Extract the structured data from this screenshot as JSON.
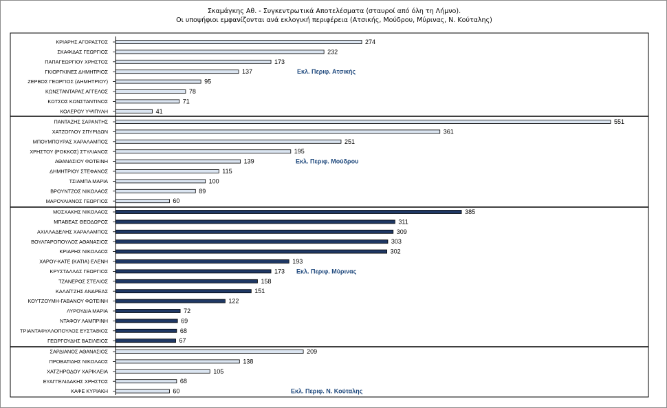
{
  "page": {
    "title": "Σκαμάγκης Αθ. - Συγκεντρωτικά Αποτελέσματα (σταυροί από όλη τη Λήμνο).",
    "subtitle": "Οι υποψήφιοι εμφανίζονται ανά εκλογική περιφέρεια (Ατσικής, Μούδρου, Μύρινας, Ν. Κούταλης)"
  },
  "chart_data": {
    "type": "bar",
    "orientation": "horizontal",
    "xlim": [
      0,
      560
    ],
    "grid": false,
    "legend": "none",
    "colors": {
      "light": "#dbe5f1",
      "dark": "#1f3864",
      "label_blue": "#1f497d"
    },
    "groups": [
      {
        "name": "Εκλ. Περιφ. Ατσικής",
        "style": "light",
        "categories": [
          "ΚΡΙΑΡΗΣ ΑΓΟΡΑΣΤΟΣ",
          "ΣΚΑΦΙΔΑΣ ΓΕΩΡΓΙΟΣ",
          "ΠΑΠΑΓΕΩΡΓΙΟΥ ΧΡΗΣΤΟΣ",
          "ΓΚΙΟΡΓΚΙΝΕΣ ΔΗΜΗΤΡΙΟΣ",
          "ΖΕΡΒΟΣ ΓΕΩΡΓΙΟΣ (ΔΗΜΗΤΡΙΟΥ)",
          "ΚΩΝΣΤΑΝΤΑΡΑΣ ΑΓΓΕΛΟΣ",
          "ΚΩΤΣΟΣ ΚΩΝΣΤΑΝΤΙΝΟΣ",
          "ΚΟΛΕΡΟΥ ΥΨΙΠΥΛΗ"
        ],
        "values": [
          274,
          232,
          173,
          137,
          95,
          78,
          71,
          41
        ]
      },
      {
        "name": "Εκλ. Περιφ.  Μούδρου",
        "style": "light",
        "categories": [
          "ΠΑΝΤΑΖΗΣ ΣΑΡΑΝΤΗΣ",
          "ΧΑΤΖΟΓΛΟΥ ΣΠΥΡΙΔΩΝ",
          "ΜΠΟΥΜΠΟΥΡΑΣ ΧΑΡΑΛΑΜΠΟΣ",
          "ΧΡΗΣΤΟΥ (ΡΟΚΚΟΣ) ΣΤΥΛΙΑΝΟΣ",
          "ΑΘΑΝΑΣΙΟΥ ΦΩΤΕΙΝΗ",
          "ΔΗΜΗΤΡΙΟΥ ΣΤΕΦΑΝΟΣ",
          "ΤΣΙΑΜΠΑ ΜΑΡΙΑ",
          "ΒΡΟΥΝΤΖΟΣ ΝΙΚΟΛΑΟΣ",
          "ΜΑΡΟΥΛΙΑΝΟΣ ΓΕΩΡΓΙΟΣ"
        ],
        "values": [
          551,
          361,
          251,
          195,
          139,
          115,
          100,
          89,
          60
        ]
      },
      {
        "name": "Εκλ. Περιφ. Μύρινας",
        "style": "dark",
        "categories": [
          "ΜΟΣΧΑΚΗΣ ΝΙΚΟΛΑΟΣ",
          "ΜΠΑΒΕΑΣ ΘΕΟΔΩΡΟΣ",
          "ΑΧΙΛΛΑΔΕΛΗΣ ΧΑΡΑΛΑΜΠΟΣ",
          "ΒΟΥΛΓΑΡΟΠΟΥΛΟΣ ΑΘΑΝΑΣΙΟΣ",
          "ΚΡΙΑΡΗΣ ΝΙΚΟΛΑΟΣ",
          "ΧΑΡΟΥ-ΚΑΤΕ (ΚΑΤΙΑ) ΕΛΕΝΗ",
          "ΚΡΥΣΤΑΛΛΑΣ ΓΕΩΡΓΙΟΣ",
          "ΤΖΑΝΕΡΟΣ ΣΤΕΛΙΟΣ",
          "ΚΑΛΑΪΤΖΗΣ ΑΝΔΡΕΑΣ",
          "ΚΟΥΤΖΟΥΜΗ-ΓΑΒΑΝΟΥ ΦΩΤΕΙΝΗ",
          "ΛΥΡΟΥΔΙΑ ΜΑΡΙΑ",
          "ΝΤΑΦΟΥ ΛΑΜΠΡΙΝΗ",
          "ΤΡΙΑΝΤΑΦΥΛΛΟΠΟΥΛΟΣ ΕΥΣΤΑΘΙΟΣ",
          "ΓΕΩΡΓΟΥΔΗΣ ΒΑΣΙΛΕΙΟΣ"
        ],
        "values": [
          385,
          311,
          309,
          303,
          302,
          193,
          173,
          158,
          151,
          122,
          72,
          69,
          68,
          67
        ]
      },
      {
        "name": "Εκλ. Περιφ. Ν. Κούταλης",
        "style": "light",
        "categories": [
          "ΣΑΡΔΙΑΝΟΣ ΑΘΑΝΑΣΙΟΣ",
          "ΠΡΟΒΑΤΙΔΗΣ ΝΙΚΟΛΑΟΣ",
          "ΧΑΤΖΗΡΟΔΟΥ ΧΑΡΙΚΛΕΙΑ",
          "ΕΥΑΓΓΕΛΙΔΑΚΗΣ ΧΡΗΣΤΟΣ",
          "ΚΑΦΕ ΚΥΡΙΑΚΗ"
        ],
        "values": [
          209,
          138,
          105,
          68,
          60
        ]
      }
    ]
  }
}
